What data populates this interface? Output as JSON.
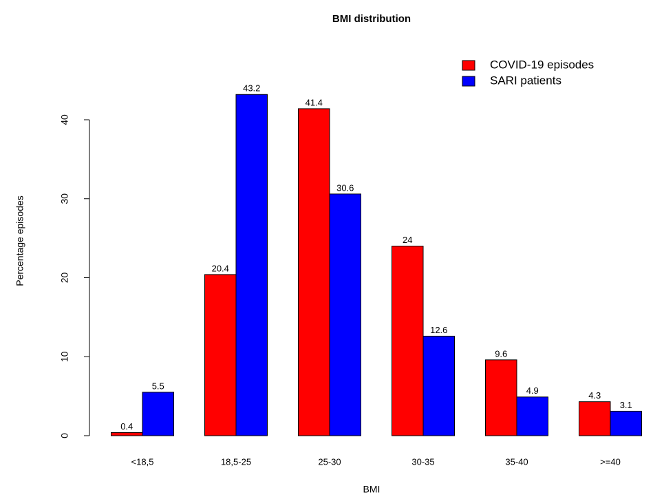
{
  "chart_data": {
    "type": "bar",
    "title": "BMI distribution",
    "x_label": "BMI",
    "y_label": "Percentage episodes",
    "categories": [
      "<18,5",
      "18,5-25",
      "25-30",
      "30-35",
      "35-40",
      ">=40"
    ],
    "series": [
      {
        "name": "COVID-19 episodes",
        "color": "#ff0000",
        "values": [
          0.4,
          20.4,
          41.4,
          24,
          9.6,
          4.3
        ]
      },
      {
        "name": "SARI patients",
        "color": "#0000ff",
        "values": [
          5.5,
          43.2,
          30.6,
          12.6,
          4.9,
          3.1
        ]
      }
    ],
    "ylim": [
      0,
      45
    ],
    "yticks": [
      0,
      10,
      20,
      30,
      40
    ],
    "legend": "top-right"
  }
}
